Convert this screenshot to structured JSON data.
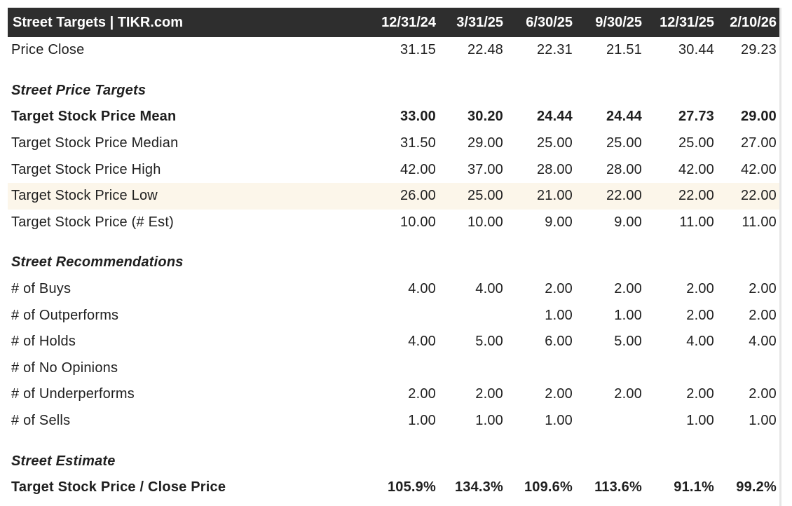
{
  "header": {
    "title": "Street Targets | TIKR.com",
    "dates": [
      "12/31/24",
      "3/31/25",
      "6/30/25",
      "9/30/25",
      "12/31/25",
      "2/10/26"
    ]
  },
  "rows": {
    "price_close": {
      "label": "Price Close",
      "values": [
        "31.15",
        "22.48",
        "22.31",
        "21.51",
        "30.44",
        "29.23"
      ]
    },
    "section_targets": {
      "label": "Street Price Targets"
    },
    "target_mean": {
      "label": "Target Stock Price Mean",
      "values": [
        "33.00",
        "30.20",
        "24.44",
        "24.44",
        "27.73",
        "29.00"
      ]
    },
    "target_median": {
      "label": "Target Stock Price Median",
      "values": [
        "31.50",
        "29.00",
        "25.00",
        "25.00",
        "25.00",
        "27.00"
      ]
    },
    "target_high": {
      "label": "Target Stock Price High",
      "values": [
        "42.00",
        "37.00",
        "28.00",
        "28.00",
        "42.00",
        "42.00"
      ]
    },
    "target_low": {
      "label": "Target Stock Price Low",
      "values": [
        "26.00",
        "25.00",
        "21.00",
        "22.00",
        "22.00",
        "22.00"
      ]
    },
    "target_est": {
      "label": "Target Stock Price (# Est)",
      "values": [
        "10.00",
        "10.00",
        "9.00",
        "9.00",
        "11.00",
        "11.00"
      ]
    },
    "section_recs": {
      "label": "Street Recommendations"
    },
    "buys": {
      "label": "# of Buys",
      "values": [
        "4.00",
        "4.00",
        "2.00",
        "2.00",
        "2.00",
        "2.00"
      ]
    },
    "outperforms": {
      "label": "# of Outperforms",
      "values": [
        "",
        "",
        "1.00",
        "1.00",
        "2.00",
        "2.00"
      ]
    },
    "holds": {
      "label": "# of Holds",
      "values": [
        "4.00",
        "5.00",
        "6.00",
        "5.00",
        "4.00",
        "4.00"
      ]
    },
    "no_opinions": {
      "label": "# of No Opinions",
      "values": [
        "",
        "",
        "",
        "",
        "",
        ""
      ]
    },
    "underperforms": {
      "label": "# of Underperforms",
      "values": [
        "2.00",
        "2.00",
        "2.00",
        "2.00",
        "2.00",
        "2.00"
      ]
    },
    "sells": {
      "label": "# of Sells",
      "values": [
        "1.00",
        "1.00",
        "1.00",
        "",
        "1.00",
        "1.00"
      ]
    },
    "section_estimate": {
      "label": "Street Estimate"
    },
    "target_close_ratio": {
      "label": "Target Stock Price / Close Price",
      "values": [
        "105.9%",
        "134.3%",
        "109.6%",
        "113.6%",
        "91.1%",
        "99.2%"
      ]
    }
  },
  "colors": {
    "header_bg": "#2e2e2e",
    "header_text": "#ffffff",
    "highlight_row": "#fcf6ea"
  }
}
